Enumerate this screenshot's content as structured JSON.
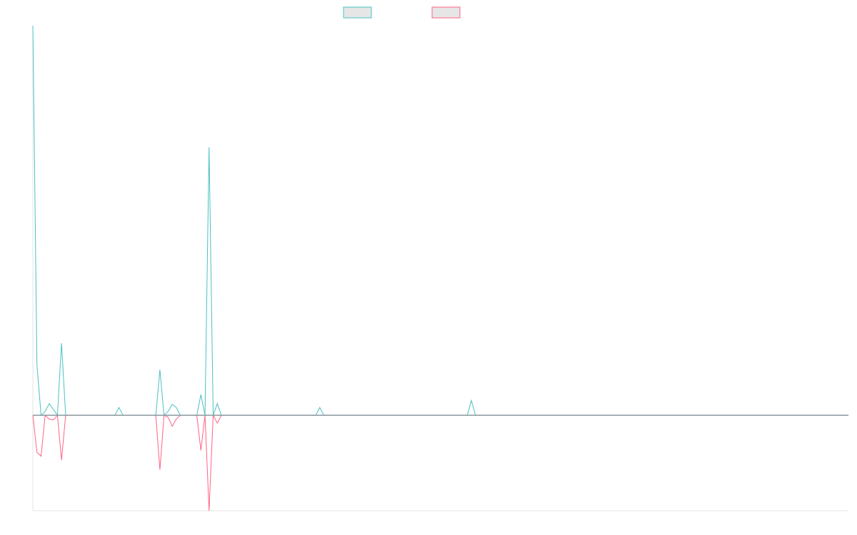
{
  "colors": {
    "series_a": "#4bc0c0",
    "series_b": "#ff6384",
    "legend_fill": "#e6e6e6",
    "axis": "#e5e5e5",
    "baseline": "#8c9aa0"
  },
  "legend": {
    "placement": "top-center",
    "items": [
      {
        "label": "",
        "color": "#4bc0c0"
      },
      {
        "label": "",
        "color": "#ff6384"
      }
    ]
  },
  "chart_data": {
    "type": "line",
    "title": "",
    "xlabel": "",
    "ylabel": "",
    "grid": false,
    "x_count": 200,
    "ylim": [
      -0.245,
      1.0
    ],
    "series": [
      {
        "color": "#4bc0c0",
        "points": [
          [
            0,
            1.0
          ],
          [
            1,
            0.13
          ],
          [
            2,
            0.0
          ],
          [
            3,
            0.01
          ],
          [
            4,
            0.03
          ],
          [
            5,
            0.015
          ],
          [
            6,
            0.0
          ],
          [
            7,
            0.185
          ],
          [
            8,
            0.0
          ],
          [
            20,
            0.0
          ],
          [
            21,
            0.02
          ],
          [
            22,
            0.0
          ],
          [
            30,
            0.0
          ],
          [
            31,
            0.117
          ],
          [
            32,
            0.0
          ],
          [
            33,
            0.01
          ],
          [
            34,
            0.028
          ],
          [
            35,
            0.02
          ],
          [
            36,
            0.0
          ],
          [
            39,
            0.0
          ],
          [
            40,
            0.0
          ],
          [
            41,
            0.053
          ],
          [
            42,
            0.0
          ],
          [
            43,
            0.688
          ],
          [
            44,
            0.0
          ],
          [
            45,
            0.03
          ],
          [
            46,
            0.0
          ],
          [
            69,
            0.0
          ],
          [
            70,
            0.02
          ],
          [
            71,
            0.0
          ],
          [
            106,
            0.0
          ],
          [
            107,
            0.038
          ],
          [
            108,
            0.0
          ],
          [
            199,
            0.0
          ]
        ]
      },
      {
        "color": "#ff6384",
        "points": [
          [
            0,
            0.0
          ],
          [
            1,
            -0.095
          ],
          [
            2,
            -0.105
          ],
          [
            3,
            0.0
          ],
          [
            4,
            -0.01
          ],
          [
            5,
            -0.012
          ],
          [
            6,
            0.0
          ],
          [
            7,
            -0.115
          ],
          [
            8,
            0.0
          ],
          [
            30,
            0.0
          ],
          [
            31,
            -0.14
          ],
          [
            32,
            0.0
          ],
          [
            33,
            -0.005
          ],
          [
            34,
            -0.028
          ],
          [
            35,
            -0.01
          ],
          [
            36,
            0.0
          ],
          [
            40,
            0.0
          ],
          [
            41,
            -0.09
          ],
          [
            42,
            0.0
          ],
          [
            43,
            -0.245
          ],
          [
            44,
            0.0
          ],
          [
            45,
            -0.02
          ],
          [
            46,
            0.0
          ],
          [
            199,
            0.0
          ]
        ]
      }
    ]
  }
}
